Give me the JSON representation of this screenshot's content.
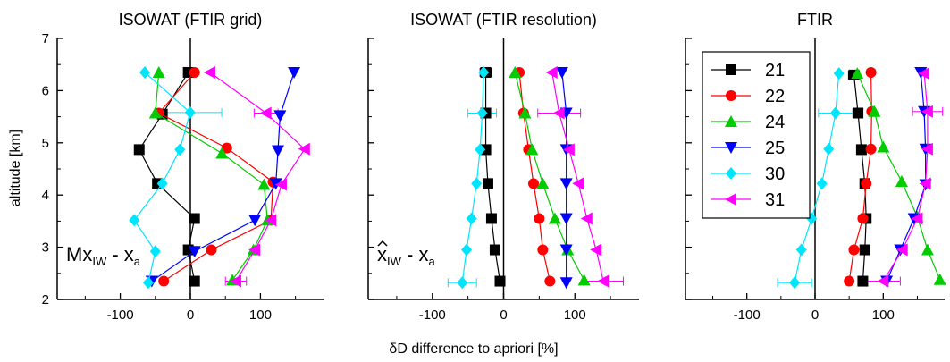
{
  "figure": {
    "xlabel": "δD difference to apriori [%]",
    "ylabel": "altitude [km]"
  },
  "legend": {
    "position": "upper-left of third panel",
    "entries": [
      {
        "label": "21",
        "color": "#000000",
        "marker": "square"
      },
      {
        "label": "22",
        "color": "#ff0000",
        "marker": "circle"
      },
      {
        "label": "24",
        "color": "#00cc00",
        "marker": "triangle-up"
      },
      {
        "label": "25",
        "color": "#0000ff",
        "marker": "triangle-down"
      },
      {
        "label": "30",
        "color": "#00e5ff",
        "marker": "diamond"
      },
      {
        "label": "31",
        "color": "#ff00ff",
        "marker": "triangle-left"
      }
    ]
  },
  "chart_data": [
    {
      "type": "line",
      "title": "ISOWAT (FTIR grid)",
      "xlim": [
        -190,
        190
      ],
      "ylim": [
        2,
        7
      ],
      "xticks": [
        -100,
        0,
        100
      ],
      "yticks": [
        2,
        3,
        4,
        5,
        6,
        7
      ],
      "annotation": {
        "base": "Mx",
        "sub": "IW",
        "rest": " - x",
        "sub2": "a",
        "hat": false
      },
      "series": [
        {
          "name": "21",
          "points": [
            [
              -3,
              6.35
            ],
            [
              -40,
              5.55
            ],
            [
              -73,
              4.87
            ],
            [
              -47,
              4.22
            ],
            [
              6,
              3.55
            ],
            [
              -3,
              2.95
            ],
            [
              6,
              2.35
            ]
          ]
        },
        {
          "name": "22",
          "points": [
            [
              6,
              6.35
            ],
            [
              -45,
              5.57
            ],
            [
              52,
              4.9
            ],
            [
              118,
              4.25
            ],
            [
              115,
              3.52
            ],
            [
              30,
              2.95
            ],
            [
              -38,
              2.35
            ]
          ]
        },
        {
          "name": "24",
          "points": [
            [
              -45,
              6.35
            ],
            [
              -50,
              5.57
            ],
            [
              45,
              4.8
            ],
            [
              105,
              4.2
            ],
            [
              110,
              3.52
            ],
            [
              90,
              2.95
            ],
            [
              60,
              2.37
            ]
          ]
        },
        {
          "name": "25",
          "points": [
            [
              148,
              6.35
            ],
            [
              128,
              5.52
            ],
            [
              125,
              4.85
            ],
            [
              122,
              4.22
            ],
            [
              92,
              3.52
            ],
            [
              6,
              2.92
            ],
            [
              -55,
              2.35
            ]
          ]
        },
        {
          "name": "30",
          "points": [
            [
              -65,
              6.35
            ],
            [
              -0.3,
              5.58
            ],
            [
              -15,
              4.87
            ],
            [
              -40,
              4.22
            ],
            [
              -80,
              3.52
            ],
            [
              -50,
              2.92
            ],
            [
              -60,
              2.32
            ]
          ]
        },
        {
          "name": "31",
          "points": [
            [
              28,
              6.35
            ],
            [
              108,
              5.57
            ],
            [
              163,
              4.88
            ],
            [
              130,
              4.2
            ],
            [
              115,
              3.52
            ],
            [
              92,
              2.95
            ],
            [
              65,
              2.35
            ]
          ]
        }
      ],
      "error_bars": [
        {
          "series": "30",
          "y": 5.58,
          "x": -0.3,
          "xerr": 45
        },
        {
          "series": "31",
          "y": 5.57,
          "x": 108,
          "xerr": 17
        },
        {
          "series": "31",
          "y": 2.35,
          "x": 65,
          "xerr": 15
        }
      ]
    },
    {
      "type": "line",
      "title": "ISOWAT (FTIR resolution)",
      "xlim": [
        -190,
        190
      ],
      "ylim": [
        2,
        7
      ],
      "xticks": [
        -100,
        0,
        100
      ],
      "yticks": [
        2,
        3,
        4,
        5,
        6,
        7
      ],
      "annotation": {
        "base": "x",
        "sub": "IW",
        "rest": " - x",
        "sub2": "a",
        "hat": true
      },
      "series": [
        {
          "name": "21",
          "points": [
            [
              -25,
              6.35
            ],
            [
              -25,
              5.57
            ],
            [
              -25,
              4.87
            ],
            [
              -22,
              4.22
            ],
            [
              -17,
              3.55
            ],
            [
              -12,
              2.95
            ],
            [
              -5,
              2.35
            ]
          ]
        },
        {
          "name": "22",
          "points": [
            [
              22,
              6.35
            ],
            [
              28,
              5.57
            ],
            [
              35,
              4.87
            ],
            [
              42,
              4.22
            ],
            [
              50,
              3.55
            ],
            [
              55,
              2.95
            ],
            [
              65,
              2.35
            ]
          ]
        },
        {
          "name": "24",
          "points": [
            [
              16,
              6.35
            ],
            [
              30,
              5.57
            ],
            [
              40,
              4.87
            ],
            [
              55,
              4.22
            ],
            [
              72,
              3.55
            ],
            [
              90,
              2.95
            ],
            [
              113,
              2.37
            ]
          ]
        },
        {
          "name": "25",
          "points": [
            [
              82,
              6.35
            ],
            [
              88,
              5.57
            ],
            [
              88,
              4.87
            ],
            [
              88,
              4.22
            ],
            [
              88,
              3.55
            ],
            [
              88,
              2.95
            ],
            [
              88,
              2.32
            ]
          ]
        },
        {
          "name": "30",
          "points": [
            [
              -28,
              6.35
            ],
            [
              -30,
              5.57
            ],
            [
              -33,
              4.87
            ],
            [
              -38,
              4.22
            ],
            [
              -45,
              3.55
            ],
            [
              -52,
              2.95
            ],
            [
              -58,
              2.32
            ]
          ]
        },
        {
          "name": "31",
          "points": [
            [
              68,
              6.35
            ],
            [
              78,
              5.57
            ],
            [
              92,
              4.87
            ],
            [
              105,
              4.22
            ],
            [
              117,
              3.55
            ],
            [
              130,
              2.95
            ],
            [
              140,
              2.35
            ]
          ]
        }
      ],
      "error_bars": [
        {
          "series": "21",
          "y": 6.35,
          "x": -25,
          "xerr": 8
        },
        {
          "series": "30",
          "y": 5.57,
          "x": -30,
          "xerr": 20
        },
        {
          "series": "31",
          "y": 5.57,
          "x": 78,
          "xerr": 30
        },
        {
          "series": "30",
          "y": 2.32,
          "x": -58,
          "xerr": 20
        },
        {
          "series": "31",
          "y": 2.35,
          "x": 140,
          "xerr": 28
        }
      ]
    },
    {
      "type": "line",
      "title": "FTIR",
      "xlim": [
        -190,
        190
      ],
      "ylim": [
        2,
        7
      ],
      "xticks": [
        -100,
        0,
        100
      ],
      "yticks": [
        2,
        3,
        4,
        5,
        6,
        7
      ],
      "series": [
        {
          "name": "21",
          "points": [
            [
              57,
              6.3
            ],
            [
              63,
              5.57
            ],
            [
              68,
              4.87
            ],
            [
              73,
              4.22
            ],
            [
              75,
              3.55
            ],
            [
              73,
              2.95
            ],
            [
              70,
              2.35
            ]
          ]
        },
        {
          "name": "22",
          "points": [
            [
              82,
              6.35
            ],
            [
              83,
              5.6
            ],
            [
              82,
              4.88
            ],
            [
              75,
              4.22
            ],
            [
              70,
              3.55
            ],
            [
              57,
              2.95
            ],
            [
              50,
              2.35
            ]
          ]
        },
        {
          "name": "24",
          "points": [
            [
              62,
              6.33
            ],
            [
              87,
              5.6
            ],
            [
              100,
              4.92
            ],
            [
              127,
              4.26
            ],
            [
              150,
              3.58
            ],
            [
              165,
              2.95
            ],
            [
              183,
              2.38
            ]
          ]
        },
        {
          "name": "25",
          "points": [
            [
              155,
              6.35
            ],
            [
              160,
              5.6
            ],
            [
              162,
              4.88
            ],
            [
              162,
              4.2
            ],
            [
              145,
              3.55
            ],
            [
              125,
              2.95
            ],
            [
              105,
              2.35
            ]
          ]
        },
        {
          "name": "30",
          "points": [
            [
              35,
              6.33
            ],
            [
              30,
              5.57
            ],
            [
              20,
              4.88
            ],
            [
              10,
              4.22
            ],
            [
              -5,
              3.55
            ],
            [
              -20,
              2.95
            ],
            [
              -30,
              2.32
            ]
          ]
        },
        {
          "name": "31",
          "points": [
            [
              160,
              6.33
            ],
            [
              165,
              5.6
            ],
            [
              165,
              4.88
            ],
            [
              162,
              4.22
            ],
            [
              150,
              3.55
            ],
            [
              128,
              2.95
            ],
            [
              100,
              2.35
            ]
          ]
        }
      ],
      "error_bars": [
        {
          "series": "21",
          "y": 6.3,
          "x": 57,
          "xerr": 8
        },
        {
          "series": "30",
          "y": 5.57,
          "x": 30,
          "xerr": 25
        },
        {
          "series": "31",
          "y": 5.6,
          "x": 165,
          "xerr": 22
        },
        {
          "series": "30",
          "y": 2.32,
          "x": -30,
          "xerr": 25
        },
        {
          "series": "31",
          "y": 2.35,
          "x": 100,
          "xerr": 25
        }
      ]
    }
  ]
}
